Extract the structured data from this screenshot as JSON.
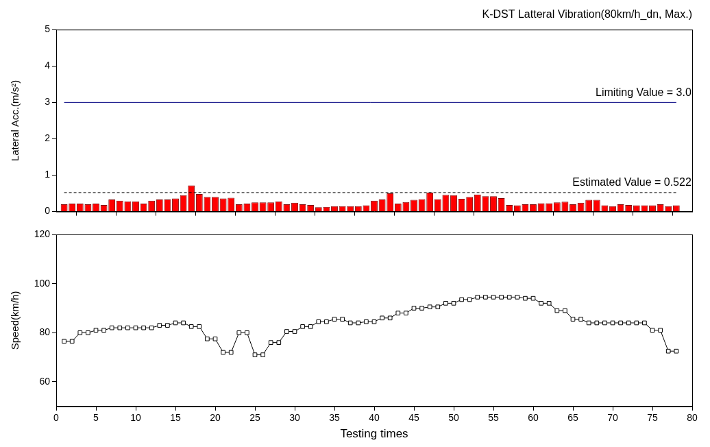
{
  "chart_data": [
    {
      "type": "bar",
      "title": "K-DST Latteral Vibration(80km/h_dn, Max.)",
      "y_label": "Lateral Acc.(m/s²)",
      "x": [
        1,
        2,
        3,
        4,
        5,
        6,
        7,
        8,
        9,
        10,
        11,
        12,
        13,
        14,
        15,
        16,
        17,
        18,
        19,
        20,
        21,
        22,
        23,
        24,
        25,
        26,
        27,
        28,
        29,
        30,
        31,
        32,
        33,
        34,
        35,
        36,
        37,
        38,
        39,
        40,
        41,
        42,
        43,
        44,
        45,
        46,
        47,
        48,
        49,
        50,
        51,
        52,
        53,
        54,
        55,
        56,
        57,
        58,
        59,
        60,
        61,
        62,
        63,
        64,
        65,
        66,
        67,
        68,
        69,
        70,
        71,
        72,
        73,
        74,
        75,
        76,
        77,
        78
      ],
      "values": [
        0.2,
        0.22,
        0.22,
        0.2,
        0.22,
        0.18,
        0.33,
        0.3,
        0.28,
        0.28,
        0.22,
        0.3,
        0.33,
        0.33,
        0.36,
        0.45,
        0.72,
        0.48,
        0.4,
        0.4,
        0.36,
        0.38,
        0.2,
        0.22,
        0.25,
        0.25,
        0.25,
        0.28,
        0.2,
        0.24,
        0.2,
        0.18,
        0.12,
        0.13,
        0.15,
        0.15,
        0.15,
        0.15,
        0.17,
        0.3,
        0.33,
        0.5,
        0.22,
        0.26,
        0.32,
        0.34,
        0.52,
        0.34,
        0.46,
        0.45,
        0.35,
        0.4,
        0.47,
        0.42,
        0.42,
        0.37,
        0.18,
        0.17,
        0.2,
        0.2,
        0.23,
        0.23,
        0.25,
        0.27,
        0.2,
        0.24,
        0.32,
        0.32,
        0.17,
        0.15,
        0.2,
        0.18,
        0.17,
        0.17,
        0.17,
        0.2,
        0.15,
        0.17
      ],
      "color": "#ff0000",
      "xlim": [
        0,
        80
      ],
      "xticks": [
        0,
        5,
        10,
        15,
        20,
        25,
        30,
        35,
        40,
        45,
        50,
        55,
        60,
        65,
        70,
        75,
        80
      ],
      "ylim": [
        0,
        5
      ],
      "yticks": [
        0,
        1,
        2,
        3,
        4,
        5
      ],
      "grid": false,
      "tick_labels": "y",
      "annotations": [
        {
          "text": "Limiting Value = 3.0",
          "y": 3.0,
          "line_style": "solid",
          "color": "#000080"
        },
        {
          "text": "Estimated Value = 0.522",
          "y": 0.522,
          "line_style": "dashed",
          "color": "#000000"
        }
      ]
    },
    {
      "type": "line",
      "x_label": "Testing times",
      "y_label": "Speed(km/h)",
      "x": [
        1,
        2,
        3,
        4,
        5,
        6,
        7,
        8,
        9,
        10,
        11,
        12,
        13,
        14,
        15,
        16,
        17,
        18,
        19,
        20,
        21,
        22,
        23,
        24,
        25,
        26,
        27,
        28,
        29,
        30,
        31,
        32,
        33,
        34,
        35,
        36,
        37,
        38,
        39,
        40,
        41,
        42,
        43,
        44,
        45,
        46,
        47,
        48,
        49,
        50,
        51,
        52,
        53,
        54,
        55,
        56,
        57,
        58,
        59,
        60,
        61,
        62,
        63,
        64,
        65,
        66,
        67,
        68,
        69,
        70,
        71,
        72,
        73,
        74,
        75,
        76,
        77,
        78
      ],
      "values": [
        76.5,
        76.5,
        80,
        80,
        81,
        81,
        82,
        82,
        82,
        82,
        82,
        82,
        83,
        83,
        84,
        84,
        82.5,
        82.5,
        77.5,
        77.5,
        72,
        72,
        80,
        80,
        71,
        71,
        76,
        76,
        80.5,
        80.5,
        82.5,
        82.5,
        84.5,
        84.5,
        85.5,
        85.5,
        84,
        84,
        84.5,
        84.5,
        86,
        86,
        88,
        88,
        90,
        90,
        90.5,
        90.5,
        92,
        92,
        93.5,
        93.5,
        94.5,
        94.5,
        94.5,
        94.5,
        94.5,
        94.5,
        94,
        94,
        92,
        92,
        89,
        89,
        85.5,
        85.5,
        84,
        84,
        84,
        84,
        84,
        84,
        84,
        84,
        81,
        81,
        72.5,
        72.5
      ],
      "color": "#000000",
      "marker": "square",
      "line_style": "solid",
      "xlim": [
        0,
        80
      ],
      "xticks": [
        0,
        5,
        10,
        15,
        20,
        25,
        30,
        35,
        40,
        45,
        50,
        55,
        60,
        65,
        70,
        75,
        80
      ],
      "ylim": [
        50,
        120
      ],
      "yticks": [
        60,
        80,
        100,
        120
      ],
      "grid": false
    }
  ]
}
